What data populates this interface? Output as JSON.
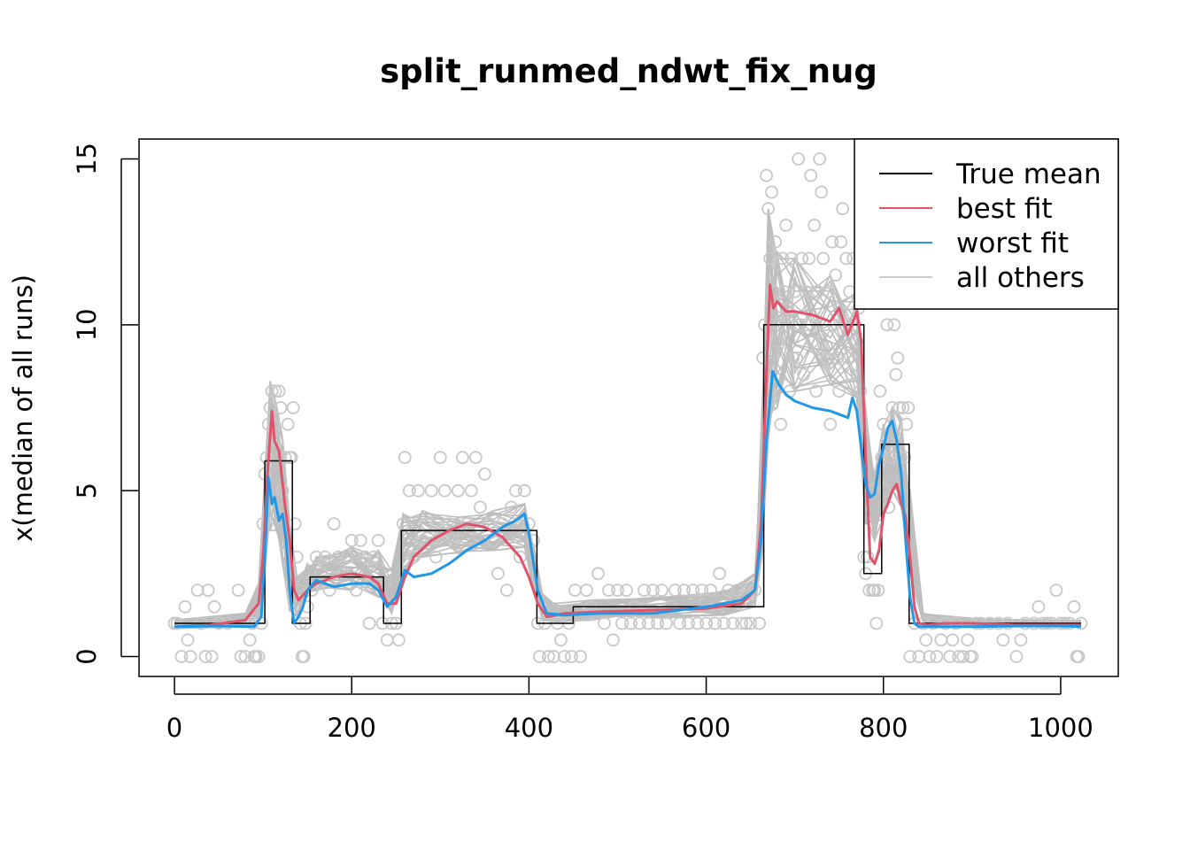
{
  "chart_data": {
    "type": "line",
    "title": "split_runmed_ndwt_fix_nug",
    "xlabel": "",
    "ylabel": "x(median of all runs)",
    "xlim": [
      -40,
      1065
    ],
    "ylim": [
      -0.6,
      15.6
    ],
    "x_ticks": [
      0,
      200,
      400,
      600,
      800,
      1000
    ],
    "x_tick_labels": [
      "0",
      "200",
      "400",
      "600",
      "800",
      "1000"
    ],
    "y_ticks": [
      0,
      5,
      10,
      15
    ],
    "y_tick_labels": [
      "0",
      "5",
      "10",
      "15"
    ],
    "grid": false,
    "legend_position": "top-right",
    "colors": {
      "true_mean": "#000000",
      "best_fit": "#DF536B",
      "worst_fit": "#2297E6",
      "others": "#BEBEBE",
      "points": "#C8C8C8"
    },
    "legend": [
      {
        "label": "True mean",
        "color": "#000000"
      },
      {
        "label": "best fit",
        "color": "#DF536B"
      },
      {
        "label": "worst fit",
        "color": "#2297E6"
      },
      {
        "label": "all others",
        "color": "#CCCCCC"
      }
    ],
    "series": [
      {
        "name": "True mean",
        "color": "#000000",
        "step": true,
        "x": [
          0,
          102,
          102,
          133,
          133,
          153,
          153,
          236,
          236,
          256,
          256,
          409,
          409,
          450,
          450,
          665,
          665,
          778,
          778,
          798,
          798,
          829,
          829,
          1023
        ],
        "y": [
          1,
          1,
          5.9,
          5.9,
          1,
          1,
          2.4,
          2.4,
          1,
          1,
          3.8,
          3.8,
          1,
          1,
          1.5,
          1.5,
          10,
          10,
          2.5,
          2.5,
          6.4,
          6.4,
          1,
          1
        ]
      },
      {
        "name": "best fit",
        "color": "#DF536B",
        "x": [
          0,
          40,
          80,
          95,
          100,
          105,
          110,
          113,
          118,
          125,
          130,
          135,
          140,
          150,
          160,
          180,
          200,
          220,
          230,
          240,
          250,
          260,
          270,
          290,
          310,
          330,
          350,
          370,
          390,
          400,
          410,
          420,
          440,
          480,
          540,
          600,
          640,
          655,
          662,
          668,
          672,
          676,
          680,
          690,
          700,
          720,
          740,
          750,
          760,
          770,
          775,
          780,
          785,
          790,
          795,
          800,
          805,
          810,
          815,
          820,
          825,
          830,
          835,
          840,
          850,
          870,
          900,
          950,
          1000,
          1023
        ],
        "y": [
          0.9,
          0.95,
          1.1,
          1.6,
          3.0,
          5.5,
          7.4,
          6.5,
          6.2,
          4.5,
          3.5,
          2.0,
          1.7,
          2.0,
          2.2,
          2.4,
          2.5,
          2.4,
          2.2,
          1.6,
          1.6,
          2.4,
          3.0,
          3.5,
          3.8,
          4.0,
          3.9,
          3.6,
          3.0,
          2.4,
          1.6,
          1.2,
          1.3,
          1.35,
          1.4,
          1.45,
          1.6,
          2.0,
          4.0,
          8.5,
          11.2,
          10.5,
          10.7,
          10.4,
          10.4,
          10.3,
          10.1,
          10.5,
          9.7,
          10.4,
          9.5,
          6.0,
          3.0,
          2.8,
          3.2,
          4.3,
          4.6,
          5.0,
          5.2,
          4.6,
          4.2,
          3.0,
          1.5,
          1.0,
          0.95,
          1.0,
          1.0,
          0.95,
          0.95,
          0.95
        ]
      },
      {
        "name": "worst fit",
        "color": "#2297E6",
        "x": [
          0,
          50,
          90,
          98,
          102,
          106,
          110,
          113,
          118,
          122,
          126,
          130,
          135,
          140,
          145,
          150,
          160,
          180,
          200,
          220,
          230,
          240,
          250,
          260,
          270,
          290,
          310,
          330,
          350,
          370,
          385,
          395,
          400,
          410,
          420,
          440,
          480,
          540,
          600,
          640,
          655,
          662,
          668,
          675,
          682,
          690,
          700,
          720,
          740,
          760,
          765,
          770,
          775,
          780,
          785,
          790,
          795,
          800,
          805,
          810,
          815,
          820,
          825,
          830,
          835,
          840,
          850,
          900,
          950,
          1000,
          1023
        ],
        "y": [
          0.9,
          0.92,
          0.9,
          1.2,
          3.0,
          5.4,
          4.6,
          4.8,
          4.1,
          4.3,
          3.5,
          2.0,
          1.0,
          1.2,
          1.5,
          2.0,
          2.3,
          2.1,
          2.2,
          2.2,
          2.0,
          1.5,
          1.8,
          2.6,
          2.4,
          2.5,
          2.8,
          3.2,
          3.5,
          3.9,
          4.1,
          4.3,
          3.7,
          2.0,
          1.3,
          1.25,
          1.3,
          1.3,
          1.5,
          1.7,
          2.0,
          3.5,
          6.5,
          8.6,
          8.2,
          7.9,
          7.7,
          7.5,
          7.4,
          7.2,
          7.8,
          7.4,
          6.3,
          5.2,
          4.8,
          4.9,
          5.8,
          6.3,
          6.9,
          7.1,
          6.5,
          5.5,
          3.5,
          1.8,
          1.0,
          0.9,
          0.9,
          0.9,
          0.92,
          0.92,
          0.9
        ]
      }
    ],
    "others_envelope": {
      "x": [
        0,
        80,
        95,
        102,
        108,
        115,
        122,
        130,
        138,
        150,
        160,
        200,
        230,
        245,
        258,
        280,
        320,
        360,
        395,
        405,
        415,
        430,
        470,
        550,
        620,
        655,
        663,
        670,
        680,
        700,
        740,
        770,
        780,
        790,
        800,
        810,
        820,
        830,
        845,
        900,
        1000,
        1023
      ],
      "lower": [
        0.85,
        0.9,
        1.0,
        2.5,
        3.8,
        3.8,
        2.8,
        1.4,
        1.2,
        1.8,
        2.0,
        2.0,
        1.8,
        1.3,
        2.5,
        3.0,
        3.1,
        3.2,
        3.3,
        2.0,
        1.1,
        1.05,
        1.1,
        1.15,
        1.25,
        1.5,
        3.0,
        6.5,
        7.5,
        8.0,
        8.2,
        7.8,
        4.0,
        3.5,
        4.2,
        5.0,
        4.5,
        2.5,
        1.0,
        0.9,
        0.9,
        0.9
      ],
      "upper": [
        1.1,
        1.3,
        2.2,
        5.5,
        8.3,
        7.6,
        6.6,
        4.0,
        2.4,
        2.8,
        3.0,
        3.3,
        3.2,
        2.6,
        4.3,
        4.4,
        4.2,
        4.4,
        4.6,
        3.4,
        1.9,
        1.6,
        1.7,
        1.8,
        2.0,
        2.5,
        7.5,
        13.5,
        12.2,
        12.0,
        11.5,
        11.0,
        7.5,
        5.5,
        7.0,
        7.5,
        7.2,
        5.0,
        1.3,
        1.15,
        1.1,
        1.1
      ]
    },
    "scatter_points": [
      [
        0,
        1
      ],
      [
        3,
        1
      ],
      [
        8,
        0
      ],
      [
        12,
        1.5
      ],
      [
        15,
        0.5
      ],
      [
        18,
        0
      ],
      [
        26,
        2
      ],
      [
        30,
        1
      ],
      [
        35,
        0
      ],
      [
        38,
        2
      ],
      [
        42,
        0
      ],
      [
        45,
        1.5
      ],
      [
        50,
        1
      ],
      [
        60,
        1
      ],
      [
        72,
        2
      ],
      [
        75,
        0
      ],
      [
        80,
        0
      ],
      [
        85,
        0.5
      ],
      [
        88,
        1
      ],
      [
        90,
        0
      ],
      [
        92,
        0
      ],
      [
        95,
        0
      ],
      [
        98,
        1
      ],
      [
        100,
        4
      ],
      [
        102,
        5.5
      ],
      [
        104,
        6
      ],
      [
        106,
        7
      ],
      [
        108,
        7.5
      ],
      [
        110,
        8
      ],
      [
        112,
        7
      ],
      [
        114,
        8
      ],
      [
        116,
        6.5
      ],
      [
        118,
        8
      ],
      [
        120,
        7.5
      ],
      [
        122,
        5
      ],
      [
        125,
        6
      ],
      [
        128,
        7
      ],
      [
        130,
        6
      ],
      [
        132,
        6
      ],
      [
        134,
        7.5
      ],
      [
        136,
        4
      ],
      [
        138,
        3
      ],
      [
        140,
        2
      ],
      [
        142,
        1
      ],
      [
        144,
        0
      ],
      [
        146,
        0
      ],
      [
        148,
        1
      ],
      [
        150,
        1.5
      ],
      [
        155,
        2
      ],
      [
        160,
        3
      ],
      [
        165,
        2.5
      ],
      [
        170,
        3
      ],
      [
        175,
        2
      ],
      [
        180,
        4
      ],
      [
        185,
        3
      ],
      [
        190,
        2.5
      ],
      [
        195,
        3
      ],
      [
        200,
        3.5
      ],
      [
        205,
        2
      ],
      [
        210,
        3.5
      ],
      [
        215,
        3
      ],
      [
        220,
        1
      ],
      [
        225,
        3
      ],
      [
        230,
        3.5
      ],
      [
        235,
        1
      ],
      [
        240,
        0.5
      ],
      [
        245,
        1
      ],
      [
        250,
        1
      ],
      [
        253,
        0.5
      ],
      [
        258,
        4
      ],
      [
        260,
        6
      ],
      [
        265,
        5
      ],
      [
        270,
        3
      ],
      [
        275,
        5
      ],
      [
        280,
        3.5
      ],
      [
        285,
        4
      ],
      [
        290,
        5
      ],
      [
        295,
        3
      ],
      [
        300,
        6
      ],
      [
        305,
        5
      ],
      [
        310,
        4
      ],
      [
        315,
        3.5
      ],
      [
        320,
        5
      ],
      [
        325,
        6
      ],
      [
        330,
        4
      ],
      [
        335,
        5
      ],
      [
        340,
        6
      ],
      [
        345,
        4.5
      ],
      [
        350,
        5.5
      ],
      [
        355,
        4
      ],
      [
        360,
        3.5
      ],
      [
        365,
        2.5
      ],
      [
        370,
        4
      ],
      [
        375,
        2
      ],
      [
        380,
        4.5
      ],
      [
        385,
        5
      ],
      [
        390,
        3
      ],
      [
        395,
        5
      ],
      [
        400,
        4
      ],
      [
        405,
        3.5
      ],
      [
        410,
        1
      ],
      [
        412,
        0
      ],
      [
        418,
        1
      ],
      [
        422,
        0
      ],
      [
        428,
        0
      ],
      [
        432,
        1
      ],
      [
        436,
        0.5
      ],
      [
        440,
        0
      ],
      [
        445,
        1
      ],
      [
        448,
        0
      ],
      [
        452,
        2
      ],
      [
        458,
        0
      ],
      [
        465,
        2
      ],
      [
        470,
        1.5
      ],
      [
        478,
        2.5
      ],
      [
        485,
        1
      ],
      [
        490,
        2
      ],
      [
        495,
        0.5
      ],
      [
        500,
        2
      ],
      [
        505,
        1
      ],
      [
        510,
        2
      ],
      [
        515,
        1
      ],
      [
        520,
        1.5
      ],
      [
        525,
        1
      ],
      [
        530,
        2
      ],
      [
        535,
        1
      ],
      [
        540,
        2
      ],
      [
        545,
        1
      ],
      [
        550,
        2
      ],
      [
        555,
        1
      ],
      [
        560,
        1.5
      ],
      [
        565,
        2
      ],
      [
        570,
        1
      ],
      [
        575,
        2
      ],
      [
        580,
        1
      ],
      [
        585,
        2
      ],
      [
        590,
        1
      ],
      [
        595,
        2
      ],
      [
        600,
        1
      ],
      [
        605,
        2
      ],
      [
        610,
        1
      ],
      [
        615,
        2.5
      ],
      [
        620,
        1
      ],
      [
        625,
        2
      ],
      [
        630,
        1
      ],
      [
        635,
        2
      ],
      [
        640,
        1
      ],
      [
        645,
        1
      ],
      [
        650,
        1
      ],
      [
        655,
        2
      ],
      [
        660,
        1
      ],
      [
        664,
        9
      ],
      [
        666,
        10
      ],
      [
        668,
        14.5
      ],
      [
        670,
        13.5
      ],
      [
        672,
        12
      ],
      [
        674,
        14
      ],
      [
        676,
        11
      ],
      [
        678,
        12.5
      ],
      [
        680,
        9.5
      ],
      [
        682,
        10
      ],
      [
        684,
        7
      ],
      [
        686,
        12
      ],
      [
        688,
        11
      ],
      [
        690,
        13
      ],
      [
        692,
        10.5
      ],
      [
        694,
        8
      ],
      [
        696,
        12
      ],
      [
        698,
        9
      ],
      [
        700,
        11
      ],
      [
        702,
        9
      ],
      [
        704,
        15
      ],
      [
        706,
        10
      ],
      [
        708,
        12
      ],
      [
        710,
        8.5
      ],
      [
        712,
        11
      ],
      [
        714,
        10
      ],
      [
        716,
        12
      ],
      [
        718,
        14.5
      ],
      [
        720,
        9.5
      ],
      [
        722,
        13
      ],
      [
        724,
        8
      ],
      [
        726,
        11
      ],
      [
        728,
        15
      ],
      [
        730,
        14
      ],
      [
        732,
        12
      ],
      [
        734,
        10
      ],
      [
        736,
        9
      ],
      [
        738,
        11
      ],
      [
        740,
        7
      ],
      [
        742,
        12.5
      ],
      [
        744,
        10
      ],
      [
        746,
        11.5
      ],
      [
        748,
        9
      ],
      [
        750,
        8
      ],
      [
        752,
        12.5
      ],
      [
        754,
        13.5
      ],
      [
        756,
        10
      ],
      [
        758,
        12
      ],
      [
        760,
        9
      ],
      [
        762,
        11
      ],
      [
        764,
        8.5
      ],
      [
        766,
        12
      ],
      [
        768,
        10
      ],
      [
        770,
        9.5
      ],
      [
        772,
        10.5
      ],
      [
        774,
        8
      ],
      [
        778,
        3
      ],
      [
        780,
        2.5
      ],
      [
        782,
        3
      ],
      [
        784,
        2
      ],
      [
        786,
        5
      ],
      [
        788,
        2
      ],
      [
        790,
        2
      ],
      [
        792,
        1
      ],
      [
        794,
        2
      ],
      [
        796,
        8
      ],
      [
        798,
        6
      ],
      [
        800,
        7
      ],
      [
        802,
        5
      ],
      [
        804,
        10
      ],
      [
        806,
        4.5
      ],
      [
        808,
        6
      ],
      [
        810,
        7.5
      ],
      [
        812,
        10
      ],
      [
        814,
        8.5
      ],
      [
        816,
        9
      ],
      [
        818,
        7.5
      ],
      [
        820,
        6
      ],
      [
        822,
        7.5
      ],
      [
        824,
        6
      ],
      [
        826,
        7
      ],
      [
        828,
        7.5
      ],
      [
        830,
        0
      ],
      [
        835,
        1
      ],
      [
        840,
        0
      ],
      [
        845,
        1
      ],
      [
        848,
        0.5
      ],
      [
        852,
        0
      ],
      [
        856,
        1
      ],
      [
        860,
        0
      ],
      [
        865,
        0.5
      ],
      [
        870,
        1
      ],
      [
        875,
        0
      ],
      [
        878,
        0.5
      ],
      [
        882,
        1
      ],
      [
        885,
        0
      ],
      [
        890,
        0
      ],
      [
        895,
        0.5
      ],
      [
        898,
        0
      ],
      [
        900,
        0
      ],
      [
        905,
        1
      ],
      [
        910,
        1
      ],
      [
        920,
        1
      ],
      [
        930,
        1
      ],
      [
        935,
        0.5
      ],
      [
        940,
        1
      ],
      [
        950,
        0
      ],
      [
        955,
        0.5
      ],
      [
        960,
        1
      ],
      [
        970,
        1
      ],
      [
        975,
        1.5
      ],
      [
        980,
        1
      ],
      [
        985,
        1
      ],
      [
        990,
        1
      ],
      [
        995,
        2
      ],
      [
        1000,
        1
      ],
      [
        1005,
        1
      ],
      [
        1010,
        1
      ],
      [
        1015,
        1.5
      ],
      [
        1018,
        0
      ],
      [
        1020,
        0
      ],
      [
        1023,
        1
      ]
    ]
  }
}
